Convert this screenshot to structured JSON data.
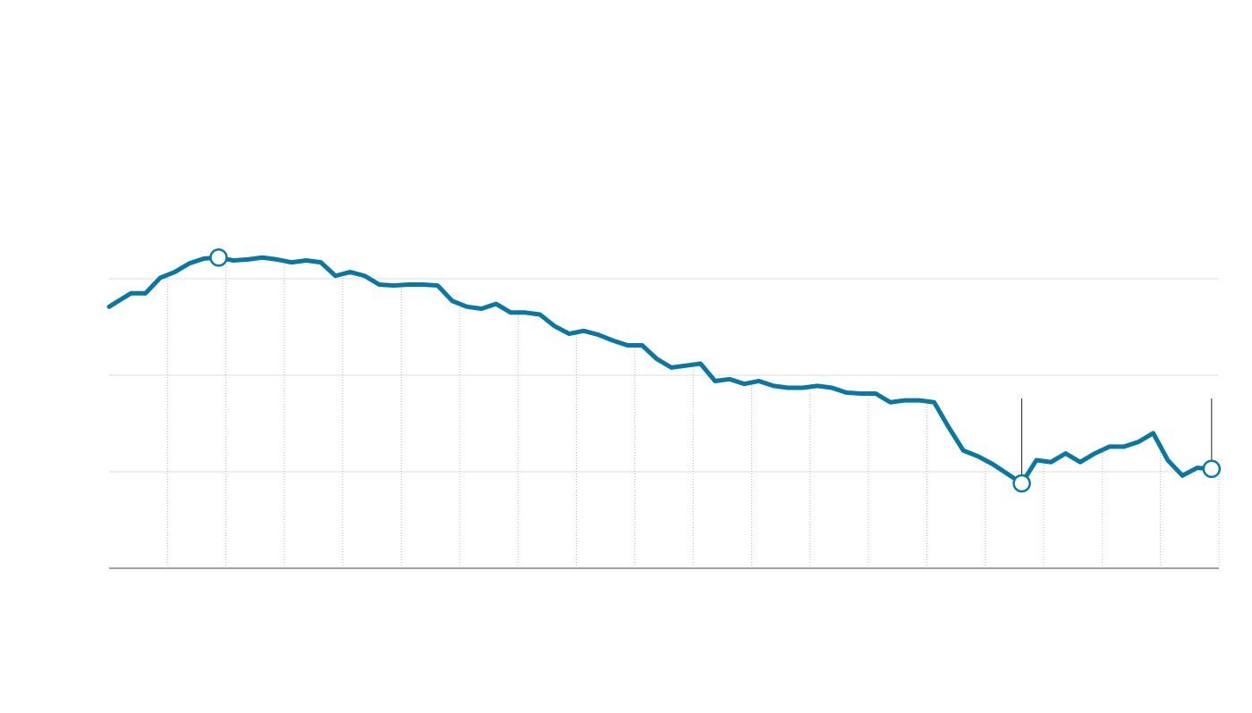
{
  "chart_data": {
    "type": "line",
    "x": [
      0,
      1.5,
      2.5,
      3.5,
      4.5,
      5.5,
      6.5,
      7.5,
      8.5,
      9.5,
      10.5,
      11.5,
      12.5,
      13.5,
      14.5,
      15.5,
      16.5,
      17.5,
      18.5,
      19.5,
      20.5,
      21.5,
      22.5,
      23.5,
      24.5,
      25.5,
      26.5,
      27.5,
      28.5,
      29.5,
      30.5,
      31.5,
      32.5,
      33.5,
      34.5,
      35.5,
      36.5,
      37.5,
      38.5,
      39.5,
      40.5,
      41.5,
      42.5,
      43.5,
      44.5,
      45.5,
      46.5,
      47.5,
      48.5,
      49.5,
      50.5,
      51.5,
      52.5,
      53.5,
      54.5,
      55.5,
      56.5,
      57.5,
      58.5,
      59.5,
      60.5,
      61.5,
      62.5,
      63.5,
      64.5,
      65.5,
      66.5,
      67.5,
      68.5,
      69.5,
      70.5,
      71.5,
      72.5,
      73.5,
      74.5,
      75.5
    ],
    "series": [
      {
        "color": "#0a77a0",
        "values": [
          2.71,
          2.85,
          2.85,
          3.01,
          3.07,
          3.16,
          3.21,
          3.22,
          3.19,
          3.2,
          3.22,
          3.2,
          3.17,
          3.19,
          3.17,
          3.03,
          3.07,
          3.03,
          2.94,
          2.93,
          2.94,
          2.94,
          2.93,
          2.77,
          2.71,
          2.69,
          2.74,
          2.65,
          2.65,
          2.63,
          2.51,
          2.43,
          2.46,
          2.42,
          2.36,
          2.31,
          2.31,
          2.17,
          2.08,
          2.1,
          2.12,
          1.94,
          1.96,
          1.91,
          1.94,
          1.89,
          1.87,
          1.87,
          1.89,
          1.87,
          1.82,
          1.81,
          1.81,
          1.72,
          1.74,
          1.74,
          1.72,
          1.46,
          1.22,
          1.16,
          1.08,
          0.98,
          0.88,
          1.12,
          1.1,
          1.19,
          1.1,
          1.19,
          1.26,
          1.26,
          1.31,
          1.4,
          1.12,
          0.96,
          1.04,
          1.03
        ]
      }
    ],
    "highlight_points": [
      7,
      62,
      75
    ],
    "annotated_points": [
      62,
      75
    ],
    "xlim": [
      0,
      76
    ],
    "xticks": [
      4,
      8,
      12,
      16,
      20,
      24,
      28,
      32,
      36,
      40,
      44,
      48,
      52,
      56,
      60,
      64,
      68,
      72,
      76
    ],
    "ylim": [
      0,
      3
    ],
    "yticks": [
      0,
      1,
      2,
      3
    ],
    "grid": true
  }
}
